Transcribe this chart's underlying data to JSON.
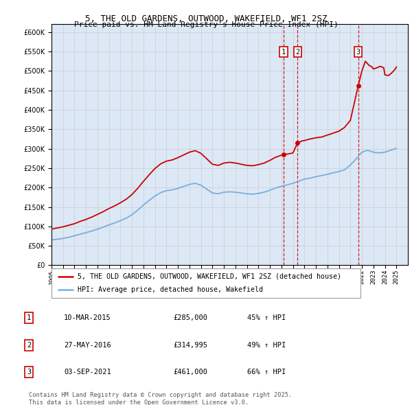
{
  "title": "5, THE OLD GARDENS, OUTWOOD, WAKEFIELD, WF1 2SZ",
  "subtitle": "Price paid vs. HM Land Registry's House Price Index (HPI)",
  "legend_property": "5, THE OLD GARDENS, OUTWOOD, WAKEFIELD, WF1 2SZ (detached house)",
  "legend_hpi": "HPI: Average price, detached house, Wakefield",
  "footer_line1": "Contains HM Land Registry data © Crown copyright and database right 2025.",
  "footer_line2": "This data is licensed under the Open Government Licence v3.0.",
  "transactions": [
    {
      "num": 1,
      "date": "10-MAR-2015",
      "price": "£285,000",
      "change": "45% ↑ HPI",
      "year": 2015.19
    },
    {
      "num": 2,
      "date": "27-MAY-2016",
      "price": "£314,995",
      "change": "49% ↑ HPI",
      "year": 2016.41
    },
    {
      "num": 3,
      "date": "03-SEP-2021",
      "price": "£461,000",
      "change": "66% ↑ HPI",
      "year": 2021.67
    }
  ],
  "transaction_prices": [
    285000,
    314995,
    461000
  ],
  "property_color": "#cc0000",
  "hpi_color": "#7aaddc",
  "background_color": "#dce8f5",
  "plot_bg": "#ffffff",
  "grid_color": "#cccccc",
  "ylim": [
    0,
    620000
  ],
  "xlim_start": 1995,
  "xlim_end": 2026
}
